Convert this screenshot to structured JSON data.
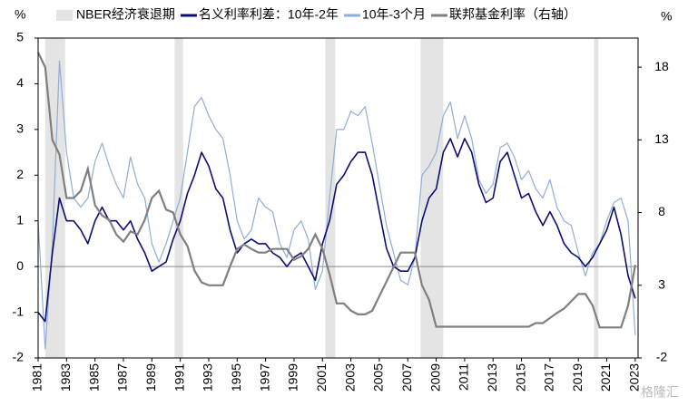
{
  "chart_data": {
    "type": "line",
    "y_unit": "%",
    "y2_unit": "%",
    "watermark": "格隆汇",
    "recessions": {
      "name": "NBER经济衰退期",
      "color": "#e4e4e4",
      "periods": [
        [
          1981.5,
          1982.9
        ],
        [
          1990.6,
          1991.2
        ],
        [
          2001.2,
          2001.9
        ],
        [
          2007.9,
          2009.5
        ],
        [
          2020.1,
          2020.4
        ]
      ]
    },
    "x": [
      1981,
      1981.5,
      1982,
      1982.5,
      1983,
      1983.5,
      1984,
      1984.5,
      1985,
      1985.5,
      1986,
      1986.5,
      1987,
      1987.5,
      1988,
      1988.5,
      1989,
      1989.5,
      1990,
      1990.5,
      1991,
      1991.5,
      1992,
      1992.5,
      1993,
      1993.5,
      1994,
      1994.5,
      1995,
      1995.5,
      1996,
      1996.5,
      1997,
      1997.5,
      1998,
      1998.5,
      1999,
      1999.5,
      2000,
      2000.5,
      2001,
      2001.5,
      2002,
      2002.5,
      2003,
      2003.5,
      2004,
      2004.5,
      2005,
      2005.5,
      2006,
      2006.5,
      2007,
      2007.5,
      2008,
      2008.5,
      2009,
      2009.5,
      2010,
      2010.5,
      2011,
      2011.5,
      2012,
      2012.5,
      2013,
      2013.5,
      2014,
      2014.5,
      2015,
      2015.5,
      2016,
      2016.5,
      2017,
      2017.5,
      2018,
      2018.5,
      2019,
      2019.5,
      2020,
      2020.5,
      2021,
      2021.5,
      2022,
      2022.5,
      2023
    ],
    "series": [
      {
        "name": "名义利率利差：10年-2年",
        "color": "#0d0d73",
        "width": 1.6,
        "values": [
          -1.0,
          -1.2,
          0.3,
          1.5,
          1.0,
          1.0,
          0.8,
          0.5,
          1.0,
          1.3,
          1.0,
          1.0,
          0.8,
          1.0,
          0.6,
          0.3,
          -0.1,
          0.0,
          0.1,
          0.6,
          1.0,
          1.6,
          2.0,
          2.5,
          2.2,
          1.7,
          1.5,
          0.8,
          0.3,
          0.5,
          0.6,
          0.5,
          0.5,
          0.3,
          0.2,
          0.0,
          0.2,
          0.3,
          0.0,
          -0.3,
          0.5,
          1.0,
          1.8,
          2.0,
          2.3,
          2.5,
          2.5,
          2.0,
          1.2,
          0.4,
          0.0,
          -0.1,
          -0.1,
          0.2,
          1.0,
          1.5,
          1.7,
          2.5,
          2.8,
          2.4,
          2.8,
          2.5,
          1.8,
          1.4,
          1.5,
          2.3,
          2.5,
          2.0,
          1.5,
          1.6,
          1.2,
          0.9,
          1.2,
          0.9,
          0.5,
          0.3,
          0.2,
          0.0,
          0.2,
          0.5,
          0.8,
          1.3,
          0.7,
          -0.2,
          -0.7
        ]
      },
      {
        "name": "10年-3个月",
        "color": "#8eaed6",
        "width": 1.2,
        "values": [
          1.0,
          -1.8,
          0.5,
          4.5,
          2.5,
          1.5,
          1.3,
          1.5,
          2.3,
          2.7,
          2.2,
          1.8,
          1.5,
          2.4,
          1.8,
          1.5,
          0.5,
          0.1,
          0.5,
          1.0,
          1.5,
          2.5,
          3.5,
          3.7,
          3.3,
          3.0,
          2.8,
          2.0,
          1.0,
          0.6,
          0.8,
          1.5,
          1.3,
          1.2,
          0.5,
          0.2,
          0.8,
          1.0,
          0.6,
          -0.5,
          -0.1,
          1.5,
          3.0,
          3.0,
          3.4,
          3.3,
          3.5,
          2.7,
          1.8,
          0.9,
          0.3,
          -0.3,
          -0.4,
          0.2,
          2.0,
          2.2,
          2.5,
          3.3,
          3.6,
          2.8,
          3.3,
          2.8,
          1.9,
          1.6,
          1.8,
          2.6,
          2.7,
          2.4,
          1.9,
          2.1,
          1.7,
          1.5,
          1.9,
          1.3,
          1.0,
          0.9,
          0.3,
          -0.2,
          0.3,
          0.5,
          1.0,
          1.4,
          1.5,
          1.0,
          -1.5
        ]
      },
      {
        "name": "联邦基金利率（右轴）",
        "color": "#7f7f7f",
        "width": 2.2,
        "axis": "y2",
        "values": [
          19,
          18,
          13,
          12,
          9,
          9,
          9.5,
          11,
          8.5,
          7.8,
          7.5,
          6.5,
          6,
          6.7,
          6.5,
          7.5,
          9,
          9.5,
          8.2,
          8,
          6.5,
          5.7,
          4,
          3.2,
          3,
          3,
          3,
          4.3,
          5.5,
          5.8,
          5.5,
          5.25,
          5.25,
          5.5,
          5.5,
          5.5,
          4.75,
          5,
          5.5,
          6.5,
          5.5,
          3.75,
          1.75,
          1.75,
          1.25,
          1,
          1,
          1.25,
          2.25,
          3.25,
          4.25,
          5.25,
          5.25,
          5.25,
          3,
          2,
          0.15,
          0.15,
          0.15,
          0.15,
          0.15,
          0.15,
          0.15,
          0.15,
          0.15,
          0.15,
          0.15,
          0.15,
          0.15,
          0.15,
          0.4,
          0.4,
          0.75,
          1.1,
          1.4,
          1.9,
          2.4,
          2.4,
          1.6,
          0.1,
          0.1,
          0.1,
          0.1,
          1.6,
          4.4
        ]
      }
    ],
    "xlim": [
      1981,
      2023.2
    ],
    "xticks": [
      1981,
      1983,
      1985,
      1987,
      1989,
      1991,
      1993,
      1995,
      1997,
      1999,
      2001,
      2003,
      2005,
      2007,
      2009,
      2011,
      2013,
      2015,
      2017,
      2019,
      2021,
      2023
    ],
    "ylim": [
      -2,
      5
    ],
    "yticks": [
      -2,
      -1,
      0,
      1,
      2,
      3,
      4,
      5
    ],
    "y2lim": [
      -2,
      20
    ],
    "y2ticks": [
      -2,
      3,
      8,
      13,
      18
    ]
  }
}
